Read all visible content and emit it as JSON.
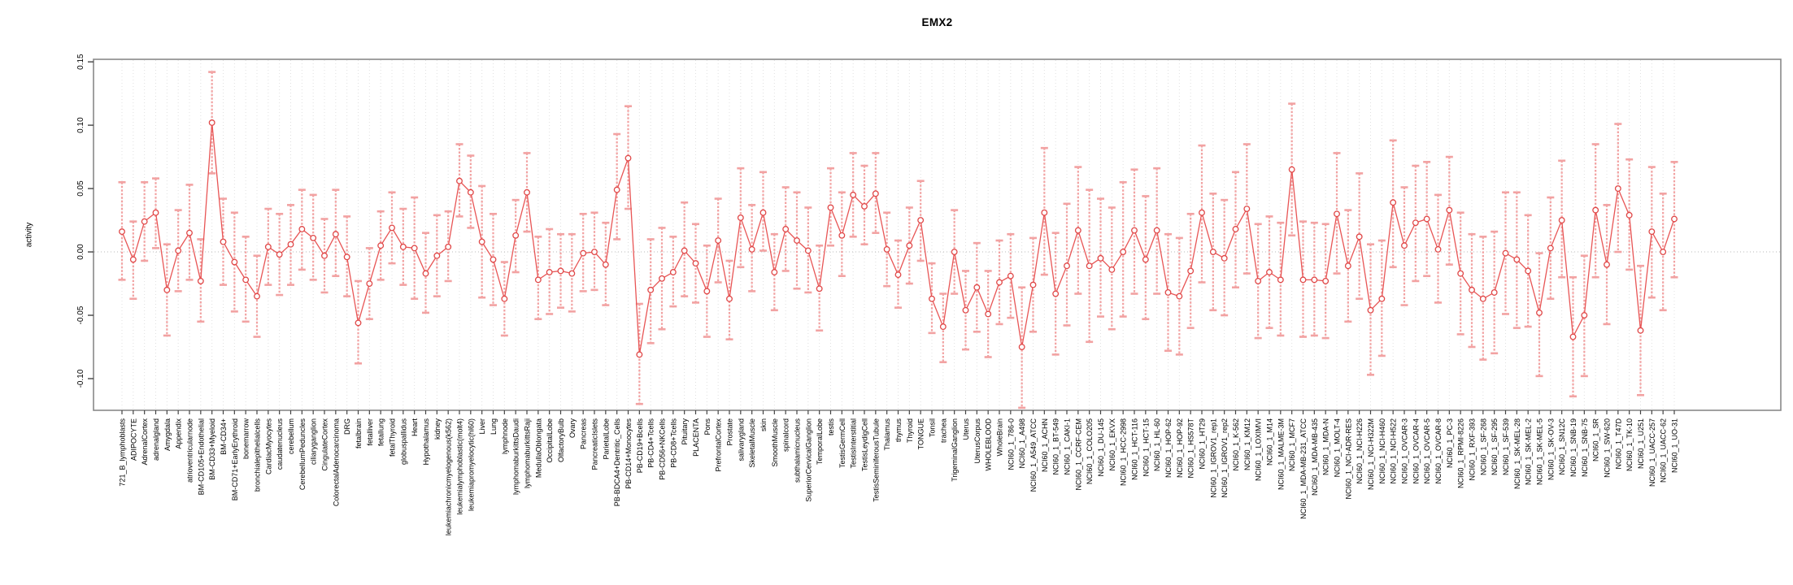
{
  "chart_data": {
    "type": "line",
    "title": "EMX2",
    "ylabel": "activity",
    "xlabel": "",
    "series_name": "activity with error bars",
    "legend": null,
    "grid": true,
    "ylim": [
      -0.125,
      0.152
    ],
    "yticks": [
      {
        "label": "0.15",
        "v": 0.15
      },
      {
        "label": "0.10",
        "v": 0.1
      },
      {
        "label": "0.05",
        "v": 0.05
      },
      {
        "label": "0.00",
        "v": 0.0
      },
      {
        "label": "-0.05",
        "v": -0.05
      },
      {
        "label": "-0.10",
        "v": -0.1
      }
    ],
    "colors": {
      "point": "#e04848",
      "line": "#e85555",
      "error_bar": "#f2a2a2",
      "grid_line": "#e0e0e0",
      "zero_line": "#b8b8b8",
      "axis": "#888888",
      "tick": "#444444",
      "text": "#000000",
      "background": "#ffffff"
    },
    "categories": [
      "721_B_lymphoblasts",
      "ADIPOCYTE",
      "AdrenalCortex",
      "adrenalgland",
      "Amygdala",
      "Appendix",
      "atrioventricularnode",
      "BM-CD105+Endothelial",
      "BM-CD33+Myeloid",
      "BM-CD34+",
      "BM-CD71+EarlyErythroid",
      "bonemarrow",
      "bronchialepithelialcells",
      "CardiacMyocytes",
      "caudatenucleus",
      "cerebellum",
      "CerebellumPeduncles",
      "ciliaryganglion",
      "CingulateCortex",
      "ColorectalAdenocarcinoma",
      "DRG",
      "fetalbrain",
      "fetalliver",
      "fetallung",
      "fetalThyroid",
      "globuspallidus",
      "Heart",
      "Hypothalamus",
      "kidney",
      "leukemiachronicmyelogenous(k562)",
      "leukemialymphoblastic(molt4)",
      "leukemiapromyelocytic(hl60)",
      "Liver",
      "Lung",
      "lymphnode",
      "lymphomaburkittsDaudi",
      "lymphomaburkittsRaji",
      "MedullaOblongata",
      "OccipitalLobe",
      "OlfactoryBulb",
      "Ovary",
      "Pancreas",
      "PancreaticIslets",
      "ParietalLobe",
      "PB-BDCA4+Dentritic_Cells",
      "PB-CD14+Monocytes",
      "PB-CD19+Bcells",
      "PB-CD4+Tcells",
      "PB-CD56+NKCells",
      "PB-CD8+Tcells",
      "Pituitary",
      "PLACENTA",
      "Pons",
      "PrefrontalCortex",
      "Prostate",
      "salivarygland",
      "SkeletalMuscle",
      "skin",
      "SmoothMuscle",
      "spinalcord",
      "subthalamicnucleus",
      "SuperiorCervicalGanglion",
      "TemporalLobe",
      "testis",
      "TestisGermCell",
      "TestisInterstitial",
      "TestisLeydigCell",
      "TestisSeminiferousTubule",
      "Thalamus",
      "thymus",
      "Thyroid",
      "TONGUE",
      "Tonsil",
      "trachea",
      "TrigeminalGanglion",
      "Uterus",
      "UterusCorpus",
      "WHOLEBLOOD",
      "WholeBrain",
      "NCI60_1_786-0",
      "NCI60_1_A498",
      "NCI60_1_A549_ATCC",
      "NCI60_1_ACHN",
      "NCI60_1_BT-549",
      "NCI60_1_CAKI-1",
      "NCI60_1_CCRF-CEM",
      "NCI60_1_COLO205",
      "NCI60_1_DU-145",
      "NCI60_1_EKVX",
      "NCI60_1_HCC-2998",
      "NCI60_1_HCT-116",
      "NCI60_1_HCT-15",
      "NCI60_1_HL-60",
      "NCI60_1_HOP-62",
      "NCI60_1_HOP-92",
      "NCI60_1_HS578T",
      "NCI60_1_HT29",
      "NCI60_1_IGROV1_rep1",
      "NCI60_1_IGROV1_rep2",
      "NCI60_1_K-562",
      "NCI60_1_KM12",
      "NCI60_1_LOXIMVI",
      "NCI60_1_M14",
      "NCI60_1_MALME-3M",
      "NCI60_1_MCF7",
      "NCI60_1_MDA-MB-231_ATCC",
      "NCI60_1_MDA-MB-435",
      "NCI60_1_MDA-N",
      "NCI60_1_MOLT-4",
      "NCI60_1_NCI-ADR-RES",
      "NCI60_1_NCI-H226",
      "NCI60_1_NCI-H322M",
      "NCI60_1_NCI-H460",
      "NCI60_1_NCI-H522",
      "NCI60_1_OVCAR-3",
      "NCI60_1_OVCAR-4",
      "NCI60_1_OVCAR-5",
      "NCI60_1_OVCAR-8",
      "NCI60_1_PC-3",
      "NCI60_1_RPMI-8226",
      "NCI60_1_RXF-393",
      "NCI60_1_SF-268",
      "NCI60_1_SF-295",
      "NCI60_1_SF-539",
      "NCI60_1_SK-MEL-28",
      "NCI60_1_SK-MEL-2",
      "NCI60_1_SK-MEL-5",
      "NCI60_1_SK-OV-3",
      "NCI60_1_SN12C",
      "NCI60_1_SNB-19",
      "NCI60_1_SNB-75",
      "NCI60_1_SR",
      "NCI60_1_SW-620",
      "NCI60_1_T47D",
      "NCI60_1_TK-10",
      "NCI60_1_U251",
      "NCI60_1_UACC-257",
      "NCI60_1_UACC-62",
      "NCI60_1_UO-31"
    ],
    "values": [
      0.016,
      -0.006,
      0.024,
      0.031,
      -0.03,
      0.001,
      0.015,
      -0.023,
      0.102,
      0.008,
      -0.008,
      -0.022,
      -0.035,
      0.004,
      -0.002,
      0.006,
      0.018,
      0.011,
      -0.003,
      0.014,
      -0.004,
      -0.056,
      -0.025,
      0.005,
      0.019,
      0.004,
      0.003,
      -0.017,
      -0.003,
      0.004,
      0.056,
      0.047,
      0.008,
      -0.006,
      -0.037,
      0.013,
      0.047,
      -0.022,
      -0.016,
      -0.015,
      -0.017,
      -0.001,
      0.0,
      -0.01,
      0.049,
      0.074,
      -0.081,
      -0.03,
      -0.021,
      -0.016,
      0.001,
      -0.009,
      -0.031,
      0.009,
      -0.037,
      0.027,
      0.002,
      0.031,
      -0.016,
      0.018,
      0.009,
      0.001,
      -0.029,
      0.035,
      0.013,
      0.045,
      0.036,
      0.046,
      0.002,
      -0.018,
      0.005,
      0.025,
      -0.037,
      -0.059,
      0.0,
      -0.046,
      -0.028,
      -0.049,
      -0.024,
      -0.019,
      -0.075,
      -0.026,
      0.031,
      -0.033,
      -0.011,
      0.017,
      -0.011,
      -0.005,
      -0.014,
      0.0,
      0.017,
      -0.006,
      0.017,
      -0.032,
      -0.035,
      -0.015,
      0.031,
      0.0,
      -0.005,
      0.018,
      0.034,
      -0.023,
      -0.016,
      -0.022,
      0.065,
      -0.022,
      -0.022,
      -0.023,
      0.03,
      -0.011,
      0.012,
      -0.046,
      -0.037,
      0.039,
      0.005,
      0.023,
      0.026,
      0.002,
      0.033,
      -0.017,
      -0.03,
      -0.037,
      -0.032,
      -0.001,
      -0.006,
      -0.015,
      -0.048,
      0.003,
      0.025,
      -0.067,
      -0.05,
      0.033,
      -0.01,
      0.05,
      0.029,
      -0.062,
      0.016,
      0.0,
      0.026
    ],
    "err_lo": [
      -0.022,
      -0.037,
      -0.007,
      0.003,
      -0.066,
      -0.031,
      -0.022,
      -0.055,
      0.062,
      -0.026,
      -0.047,
      -0.055,
      -0.067,
      -0.026,
      -0.034,
      -0.026,
      -0.014,
      -0.022,
      -0.032,
      -0.019,
      -0.035,
      -0.088,
      -0.053,
      -0.022,
      -0.009,
      -0.026,
      -0.037,
      -0.048,
      -0.035,
      -0.023,
      0.028,
      0.019,
      -0.036,
      -0.042,
      -0.066,
      -0.016,
      0.016,
      -0.053,
      -0.049,
      -0.044,
      -0.047,
      -0.031,
      -0.03,
      -0.042,
      0.01,
      0.034,
      -0.12,
      -0.072,
      -0.061,
      -0.043,
      -0.035,
      -0.04,
      -0.067,
      -0.024,
      -0.069,
      -0.012,
      -0.031,
      0.001,
      -0.046,
      -0.015,
      -0.029,
      -0.032,
      -0.062,
      0.005,
      -0.019,
      0.012,
      0.006,
      0.015,
      -0.027,
      -0.044,
      -0.025,
      -0.007,
      -0.064,
      -0.087,
      -0.033,
      -0.077,
      -0.063,
      -0.083,
      -0.057,
      -0.052,
      -0.123,
      -0.063,
      -0.018,
      -0.081,
      -0.058,
      -0.033,
      -0.071,
      -0.051,
      -0.061,
      -0.051,
      -0.033,
      -0.053,
      -0.033,
      -0.078,
      -0.081,
      -0.06,
      -0.024,
      -0.046,
      -0.05,
      -0.028,
      -0.017,
      -0.068,
      -0.06,
      -0.066,
      0.013,
      -0.067,
      -0.066,
      -0.068,
      -0.017,
      -0.055,
      -0.037,
      -0.097,
      -0.082,
      -0.012,
      -0.042,
      -0.023,
      -0.019,
      -0.04,
      -0.01,
      -0.065,
      -0.075,
      -0.085,
      -0.08,
      -0.049,
      -0.06,
      -0.059,
      -0.098,
      -0.037,
      -0.02,
      -0.114,
      -0.098,
      -0.02,
      -0.057,
      0.0,
      -0.014,
      -0.113,
      -0.036,
      -0.046,
      -0.02
    ],
    "err_hi": [
      0.055,
      0.024,
      0.055,
      0.058,
      0.006,
      0.033,
      0.053,
      0.01,
      0.142,
      0.042,
      0.031,
      0.012,
      -0.003,
      0.034,
      0.03,
      0.037,
      0.049,
      0.045,
      0.026,
      0.049,
      0.028,
      -0.023,
      0.003,
      0.032,
      0.047,
      0.034,
      0.043,
      0.015,
      0.029,
      0.032,
      0.085,
      0.076,
      0.052,
      0.03,
      -0.008,
      0.041,
      0.078,
      0.012,
      0.018,
      0.014,
      0.014,
      0.03,
      0.031,
      0.023,
      0.093,
      0.115,
      -0.041,
      0.01,
      0.019,
      0.012,
      0.039,
      0.022,
      0.005,
      0.042,
      -0.007,
      0.066,
      0.037,
      0.063,
      0.014,
      0.051,
      0.047,
      0.035,
      0.005,
      0.066,
      0.047,
      0.078,
      0.068,
      0.078,
      0.031,
      0.009,
      0.035,
      0.056,
      -0.009,
      -0.033,
      0.033,
      -0.015,
      0.007,
      -0.015,
      0.009,
      0.014,
      -0.028,
      0.011,
      0.082,
      0.015,
      0.038,
      0.067,
      0.049,
      0.042,
      0.035,
      0.055,
      0.065,
      0.044,
      0.066,
      0.014,
      0.011,
      0.03,
      0.084,
      0.046,
      0.041,
      0.063,
      0.085,
      0.022,
      0.028,
      0.023,
      0.117,
      0.024,
      0.023,
      0.022,
      0.078,
      0.033,
      0.062,
      0.006,
      0.009,
      0.088,
      0.051,
      0.068,
      0.071,
      0.045,
      0.075,
      0.031,
      0.014,
      0.012,
      0.016,
      0.047,
      0.047,
      0.029,
      -0.001,
      0.043,
      0.072,
      -0.02,
      -0.003,
      0.085,
      0.037,
      0.101,
      0.073,
      -0.011,
      0.067,
      0.046,
      0.071
    ]
  }
}
